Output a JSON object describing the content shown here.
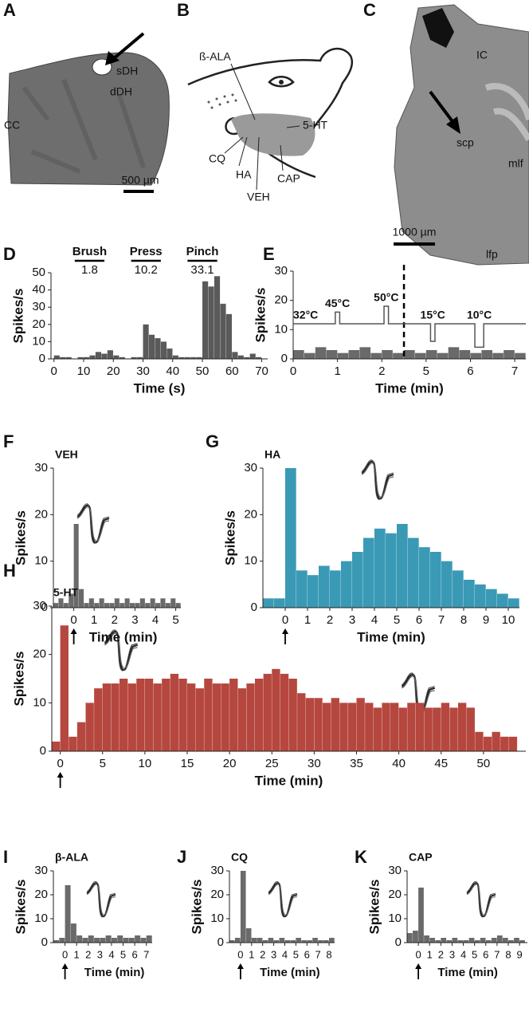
{
  "images": [
    {
      "panel": "A",
      "labels": [
        "sDH",
        "dDH",
        "CC"
      ],
      "scale_bar": "500 µm"
    },
    {
      "panel": "B",
      "labels": [
        "ß-ALA",
        "5-HT",
        "CQ",
        "HA",
        "VEH",
        "CAP"
      ]
    },
    {
      "panel": "C",
      "labels": [
        "IC",
        "scp",
        "mlf",
        "lfp"
      ],
      "scale_bar": "1000 µm"
    }
  ],
  "chart_data": [
    {
      "type": "histogram",
      "panel": "D",
      "xlabel": "Time (s)",
      "ylabel": "Spikes/s",
      "color": "#5a5a5a",
      "bins": [
        0,
        2,
        4,
        6,
        8,
        10,
        12,
        14,
        16,
        18,
        20,
        22,
        24,
        26,
        28,
        30,
        32,
        34,
        36,
        38,
        40,
        42,
        44,
        46,
        48,
        50,
        52,
        54,
        56,
        58,
        60,
        62,
        64,
        66,
        68,
        70
      ],
      "values": [
        2,
        1,
        1,
        0,
        1,
        1,
        2,
        4,
        3,
        5,
        2,
        1,
        0,
        1,
        1,
        20,
        14,
        12,
        10,
        6,
        2,
        1,
        1,
        1,
        1,
        45,
        42,
        48,
        32,
        26,
        4,
        2,
        1,
        3,
        1
      ],
      "xlim": [
        -1,
        72
      ],
      "xticks": [
        0,
        10,
        20,
        30,
        40,
        50,
        60,
        70
      ],
      "ylim": [
        0,
        50
      ],
      "yticks": [
        0,
        10,
        20,
        30,
        40,
        50
      ],
      "annotations": [
        {
          "label": "Brush",
          "value": 1.8,
          "start": 7,
          "end": 17
        },
        {
          "label": "Press",
          "value": 10.2,
          "start": 26,
          "end": 36
        },
        {
          "label": "Pinch",
          "value": 33.1,
          "start": 45,
          "end": 55
        }
      ]
    },
    {
      "type": "histogram",
      "panel": "E",
      "xlabel": "Time (min)",
      "ylabel": "Spikes/s",
      "color": "#6a6a6a",
      "bins": [
        0,
        0.25,
        0.5,
        0.75,
        1,
        1.25,
        1.5,
        1.75,
        2,
        2.25,
        2.5,
        4.5,
        4.75,
        5,
        5.25,
        5.5,
        5.75,
        6,
        6.25,
        6.5,
        6.75,
        7,
        7.25
      ],
      "values": [
        3,
        2,
        4,
        3,
        2,
        3,
        4,
        2,
        3,
        2,
        null,
        3,
        2,
        3,
        2,
        4,
        3,
        2,
        3,
        2,
        3,
        2
      ],
      "xlim": [
        0,
        7.25
      ],
      "xbreak": [
        2.5,
        4.5
      ],
      "xticks": [
        0,
        1,
        2,
        5,
        6,
        7
      ],
      "ylim": [
        0,
        30
      ],
      "yticks": [
        0,
        10,
        20,
        30
      ],
      "stimulus": {
        "x": [
          0,
          0.95,
          0.95,
          1.05,
          1.05,
          2.05,
          2.05,
          2.15,
          2.15,
          5.1,
          5.1,
          5.2,
          5.2,
          6.1,
          6.1,
          6.3,
          6.3,
          7.25
        ],
        "values": [
          12,
          12,
          16,
          16,
          12,
          12,
          18,
          18,
          12,
          12,
          6,
          6,
          12,
          12,
          4,
          4,
          12,
          12
        ]
      },
      "annotations": [
        {
          "text": "32°C",
          "x": 0
        },
        {
          "text": "45°C",
          "x": 1
        },
        {
          "text": "50°C",
          "x": 2.1
        },
        {
          "text": "15°C",
          "x": 5.15
        },
        {
          "text": "10°C",
          "x": 6.2
        }
      ]
    },
    {
      "type": "histogram",
      "panel": "F",
      "title": "VEH",
      "xlabel": "Time (min)",
      "ylabel": "Spikes/s",
      "color": "#6a6a6a",
      "bins": [
        -1,
        -0.75,
        -0.5,
        -0.25,
        0,
        0.25,
        0.5,
        0.75,
        1,
        1.25,
        1.5,
        1.75,
        2,
        2.25,
        2.5,
        2.75,
        3,
        3.25,
        3.5,
        3.75,
        4,
        4.25,
        4.5,
        4.75,
        5,
        5.25
      ],
      "values": [
        1,
        2,
        1,
        3,
        18,
        4,
        1,
        2,
        1,
        2,
        1,
        1,
        2,
        1,
        2,
        1,
        1,
        2,
        1,
        2,
        1,
        2,
        1,
        2,
        1
      ],
      "xlim": [
        -1,
        5.25
      ],
      "xticks": [
        0,
        1,
        2,
        3,
        4,
        5
      ],
      "ylim": [
        0,
        30
      ],
      "yticks": [
        0,
        10,
        20,
        30
      ]
    },
    {
      "type": "histogram",
      "panel": "G",
      "title": "HA",
      "xlabel": "Time (min)",
      "ylabel": "Spikes/s",
      "color": "#3a9ab5",
      "bins": [
        -1,
        -0.5,
        0,
        0.5,
        1,
        1.5,
        2,
        2.5,
        3,
        3.5,
        4,
        4.5,
        5,
        5.5,
        6,
        6.5,
        7,
        7.5,
        8,
        8.5,
        9,
        9.5,
        10,
        10.5
      ],
      "values": [
        2,
        2,
        30,
        8,
        7,
        9,
        8,
        10,
        12,
        15,
        17,
        16,
        18,
        15,
        13,
        12,
        10,
        8,
        6,
        5,
        4,
        3,
        2
      ],
      "xlim": [
        -1,
        10.5
      ],
      "xticks": [
        0,
        1,
        2,
        3,
        4,
        5,
        6,
        7,
        8,
        9,
        10
      ],
      "ylim": [
        0,
        30
      ],
      "yticks": [
        0,
        10,
        20,
        30
      ]
    },
    {
      "type": "histogram",
      "panel": "H",
      "title": "5-HT",
      "xlabel": "Time (min)",
      "ylabel": "Spikes/s",
      "color": "#b5473f",
      "bins": [
        -1,
        0,
        1,
        2,
        3,
        4,
        5,
        6,
        7,
        8,
        9,
        10,
        11,
        12,
        13,
        14,
        15,
        16,
        17,
        18,
        19,
        20,
        21,
        22,
        23,
        24,
        25,
        26,
        27,
        28,
        29,
        30,
        31,
        32,
        33,
        34,
        35,
        36,
        37,
        38,
        39,
        40,
        41,
        42,
        43,
        44,
        45,
        46,
        47,
        48,
        49,
        50,
        51,
        52,
        53,
        54
      ],
      "values": [
        2,
        26,
        3,
        6,
        10,
        13,
        14,
        14,
        15,
        14,
        15,
        15,
        14,
        15,
        16,
        15,
        14,
        13,
        15,
        14,
        14,
        15,
        13,
        14,
        15,
        16,
        17,
        16,
        15,
        12,
        11,
        11,
        10,
        11,
        10,
        10,
        11,
        10,
        9,
        10,
        10,
        9,
        10,
        10,
        9,
        9,
        10,
        9,
        10,
        9,
        4,
        3,
        4,
        3,
        3
      ],
      "xlim": [
        -1,
        55
      ],
      "xticks": [
        0,
        5,
        10,
        15,
        20,
        25,
        30,
        35,
        40,
        45,
        50
      ],
      "ylim": [
        0,
        30
      ],
      "yticks": [
        0,
        10,
        20,
        30
      ]
    },
    {
      "type": "histogram",
      "panel": "I",
      "title": "β-ALA",
      "xlabel": "Time (min)",
      "ylabel": "Spikes/s",
      "color": "#6a6a6a",
      "bins": [
        -1,
        -0.5,
        0,
        0.5,
        1,
        1.5,
        2,
        2.5,
        3,
        3.5,
        4,
        4.5,
        5,
        5.5,
        6,
        6.5,
        7,
        7.5
      ],
      "values": [
        1,
        2,
        24,
        8,
        3,
        2,
        3,
        2,
        2,
        3,
        2,
        3,
        2,
        2,
        3,
        2,
        3
      ],
      "xlim": [
        -1,
        7.5
      ],
      "xticks": [
        0,
        1,
        2,
        3,
        4,
        5,
        6,
        7
      ],
      "ylim": [
        0,
        30
      ],
      "yticks": [
        0,
        10,
        20,
        30
      ]
    },
    {
      "type": "histogram",
      "panel": "J",
      "title": "CQ",
      "xlabel": "Time (min)",
      "ylabel": "Spikes/s",
      "color": "#6a6a6a",
      "bins": [
        -1,
        -0.5,
        0,
        0.5,
        1,
        1.5,
        2,
        2.5,
        3,
        3.5,
        4,
        4.5,
        5,
        5.5,
        6,
        6.5,
        7,
        7.5,
        8,
        8.5
      ],
      "values": [
        1,
        2,
        30,
        6,
        2,
        2,
        1,
        2,
        1,
        2,
        1,
        1,
        2,
        1,
        1,
        2,
        1,
        1,
        2
      ],
      "xlim": [
        -1,
        8.5
      ],
      "xticks": [
        0,
        1,
        2,
        3,
        4,
        5,
        6,
        7,
        8
      ],
      "ylim": [
        0,
        30
      ],
      "yticks": [
        0,
        10,
        20,
        30
      ]
    },
    {
      "type": "histogram",
      "panel": "K",
      "title": "CAP",
      "xlabel": "Time (min)",
      "ylabel": "Spikes/s",
      "color": "#6a6a6a",
      "bins": [
        -1,
        -0.5,
        0,
        0.5,
        1,
        1.5,
        2,
        2.5,
        3,
        3.5,
        4,
        4.5,
        5,
        5.5,
        6,
        6.5,
        7,
        7.5,
        8,
        8.5,
        9,
        9.5
      ],
      "values": [
        4,
        5,
        23,
        3,
        2,
        1,
        2,
        1,
        2,
        1,
        1,
        2,
        1,
        2,
        1,
        2,
        3,
        2,
        1,
        2,
        1
      ],
      "xlim": [
        -1,
        9.7
      ],
      "xticks": [
        0,
        1,
        2,
        3,
        4,
        5,
        6,
        7,
        8,
        9
      ],
      "ylim": [
        0,
        30
      ],
      "yticks": [
        0,
        10,
        20,
        30
      ]
    }
  ]
}
